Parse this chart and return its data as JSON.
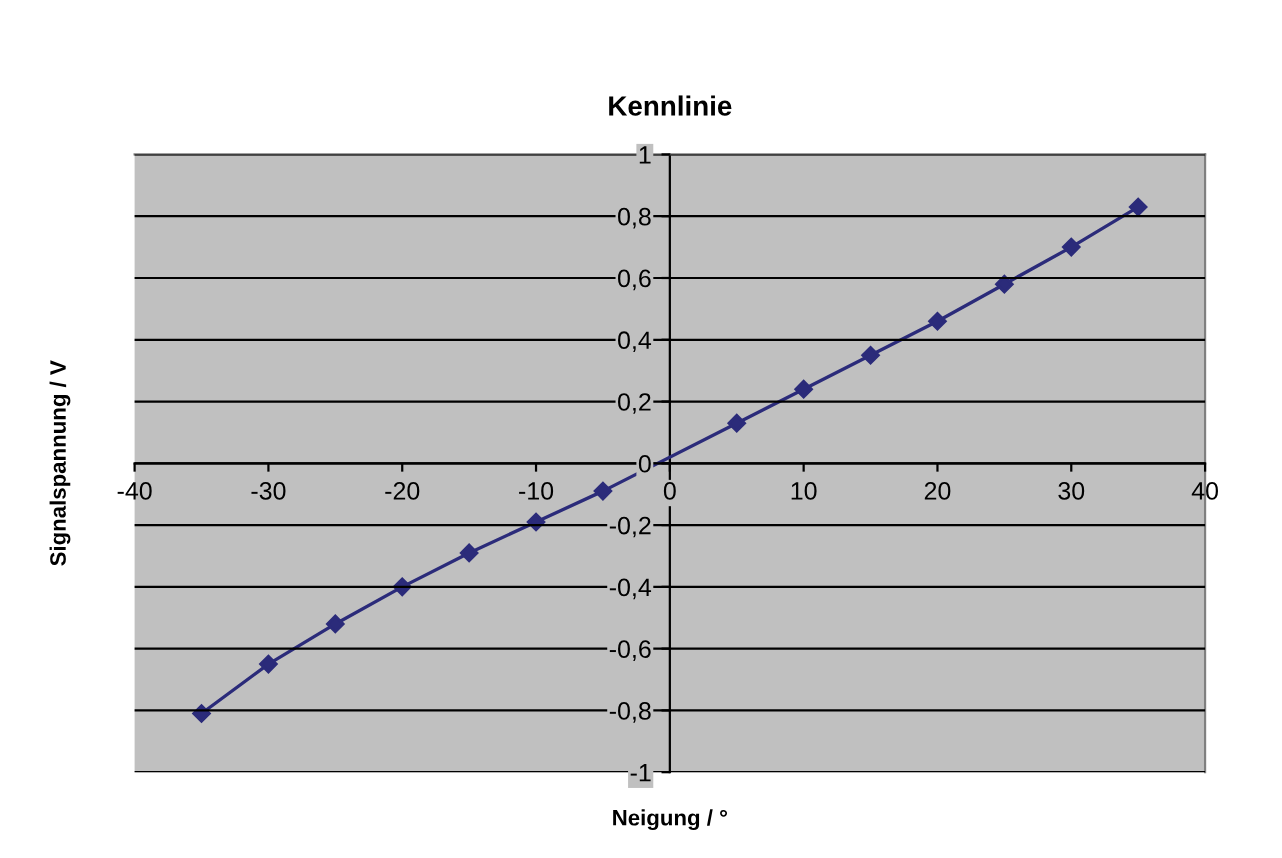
{
  "chart_data": {
    "type": "line",
    "title": "Kennlinie",
    "xlabel": "Neigung / °",
    "ylabel": "Signalspannung / V",
    "x": [
      -35,
      -30,
      -25,
      -20,
      -15,
      -10,
      -5,
      5,
      10,
      15,
      20,
      25,
      30,
      35
    ],
    "series": [
      {
        "color": "#2b2b7a",
        "values": [
          -0.81,
          -0.65,
          -0.52,
          -0.4,
          -0.29,
          -0.19,
          -0.09,
          0.13,
          0.24,
          0.35,
          0.46,
          0.58,
          0.7,
          0.83
        ]
      }
    ],
    "xlim": [
      -40,
      40
    ],
    "xticks": [
      -40,
      -30,
      -20,
      -10,
      0,
      10,
      20,
      30,
      40
    ],
    "ylim": [
      -1,
      1
    ],
    "yticks": [
      {
        "value": -1,
        "label": "-1"
      },
      {
        "value": -0.8,
        "label": "-0,8"
      },
      {
        "value": -0.6,
        "label": "-0,6"
      },
      {
        "value": -0.4,
        "label": "-0,4"
      },
      {
        "value": -0.2,
        "label": "-0,2"
      },
      {
        "value": 0,
        "label": "0"
      },
      {
        "value": 0.2,
        "label": "0,2"
      },
      {
        "value": 0.4,
        "label": "0,4"
      },
      {
        "value": 0.6,
        "label": "0,6"
      },
      {
        "value": 0.8,
        "label": "0,8"
      },
      {
        "value": 1,
        "label": "1"
      }
    ],
    "grid": "y",
    "marker": "diamond",
    "line_style": "solid"
  }
}
